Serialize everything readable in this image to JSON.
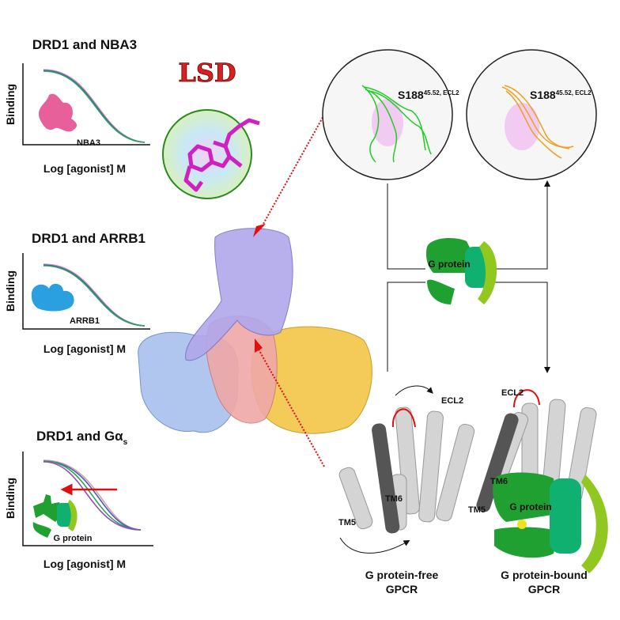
{
  "panels": [
    {
      "title": "DRD1 and NBA3",
      "ylabel": "Binding",
      "xlabel": "Log [agonist] M",
      "blob_label": "NBA3"
    },
    {
      "title": "DRD1 and ARRB1",
      "ylabel": "Binding",
      "xlabel": "Log [agonist] M",
      "blob_label": "ARRB1"
    },
    {
      "title_main": "DRD1 and Gα",
      "title_sub": "s",
      "ylabel": "Binding",
      "xlabel": "Log [agonist] M",
      "blob_label": "G protein"
    }
  ],
  "ligand": {
    "name": "LSD",
    "color": "#d92020"
  },
  "zoom_circles": [
    {
      "residue": "S188",
      "superscript": "45.52, ECL2",
      "color": "#22cc22"
    },
    {
      "residue": "S188",
      "superscript": "45.52, ECL2",
      "color": "#f0a020"
    }
  ],
  "center_gprotein_label": "G protein",
  "states": [
    {
      "caption_line1": "G protein-free",
      "caption_line2": "GPCR",
      "labels": {
        "ecl2": "ECL2",
        "tm6": "TM6",
        "tm5": "TM5"
      }
    },
    {
      "caption_line1": "G protein-bound",
      "caption_line2": "GPCR",
      "labels": {
        "ecl2": "ECL2",
        "tm6": "TM6",
        "tm5": "TM5",
        "gprotein": "G protein"
      }
    }
  ],
  "colors": {
    "curve_pink": "#d8a0a0",
    "curve_blue": "#4060c0",
    "curve_green": "#30a060",
    "curve_purple": "#9050b0",
    "arrow": "#e01010"
  }
}
